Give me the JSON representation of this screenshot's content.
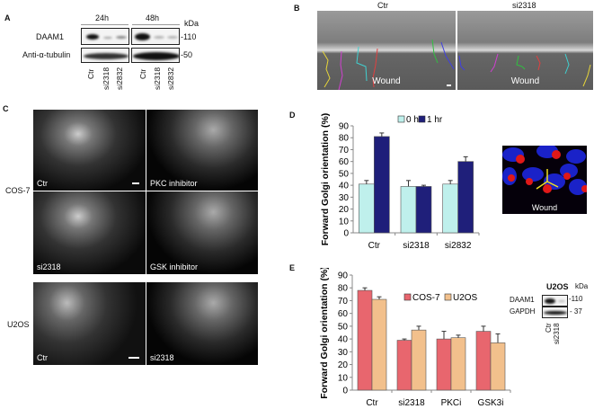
{
  "panel_a": {
    "label": "A",
    "timepoints": [
      "24h",
      "48h"
    ],
    "unit": "kDa",
    "rows": [
      {
        "name": "DAAM1",
        "marker": "110"
      },
      {
        "name": "Anti-α-tubulin",
        "marker": "50"
      }
    ],
    "lanes": [
      "Ctr",
      "si2318",
      "si2832"
    ]
  },
  "panel_b": {
    "label": "B",
    "images": [
      {
        "title": "Ctr",
        "caption": "Wound"
      },
      {
        "title": "si2318",
        "caption": "Wound"
      }
    ]
  },
  "panel_c": {
    "label": "C",
    "row_labels": [
      "COS-7",
      "U2OS"
    ],
    "images": [
      "Ctr",
      "PKC inhibitor",
      "si2318",
      "GSK inhibitor",
      "Ctr",
      "si2318"
    ]
  },
  "panel_d": {
    "label": "D",
    "inset_caption": "Wound"
  },
  "panel_e": {
    "label": "E",
    "inset": {
      "title": "U2OS",
      "unit": "kDa",
      "rows": [
        {
          "name": "DAAM1",
          "marker": "110"
        },
        {
          "name": "GAPDH",
          "marker": "37"
        }
      ],
      "lanes": [
        "Ctr",
        "si2318"
      ]
    }
  },
  "chart_data": [
    {
      "type": "bar",
      "ylabel": "Forward Golgi orientation (%)",
      "ylim": [
        0,
        90
      ],
      "yticks": [
        0,
        10,
        20,
        30,
        40,
        50,
        60,
        70,
        80,
        90
      ],
      "categories": [
        "Ctr",
        "si2318",
        "si2832"
      ],
      "legend": "top",
      "grid": false,
      "series": [
        {
          "name": "0 hr",
          "color": "#bff0ec",
          "values": [
            41,
            39,
            41
          ],
          "errors": [
            3,
            5,
            3
          ]
        },
        {
          "name": "1 hr",
          "color": "#1f1f7a",
          "values": [
            81,
            39,
            60
          ],
          "errors": [
            3,
            1,
            4
          ]
        }
      ]
    },
    {
      "type": "bar",
      "ylabel": "Forward Golgi orientation (%)",
      "ylim": [
        0,
        90
      ],
      "yticks": [
        0,
        10,
        20,
        30,
        40,
        50,
        60,
        70,
        80,
        90
      ],
      "categories": [
        "Ctr",
        "si2318",
        "PKCi",
        "GSK3i"
      ],
      "legend": "top",
      "grid": false,
      "series": [
        {
          "name": "COS-7",
          "color": "#e8666e",
          "values": [
            78,
            39,
            40,
            46
          ],
          "errors": [
            2,
            1,
            6,
            4
          ]
        },
        {
          "name": "U2OS",
          "color": "#f2c08c",
          "values": [
            71,
            47,
            41,
            37
          ],
          "errors": [
            2,
            3,
            2,
            7
          ]
        }
      ]
    }
  ]
}
